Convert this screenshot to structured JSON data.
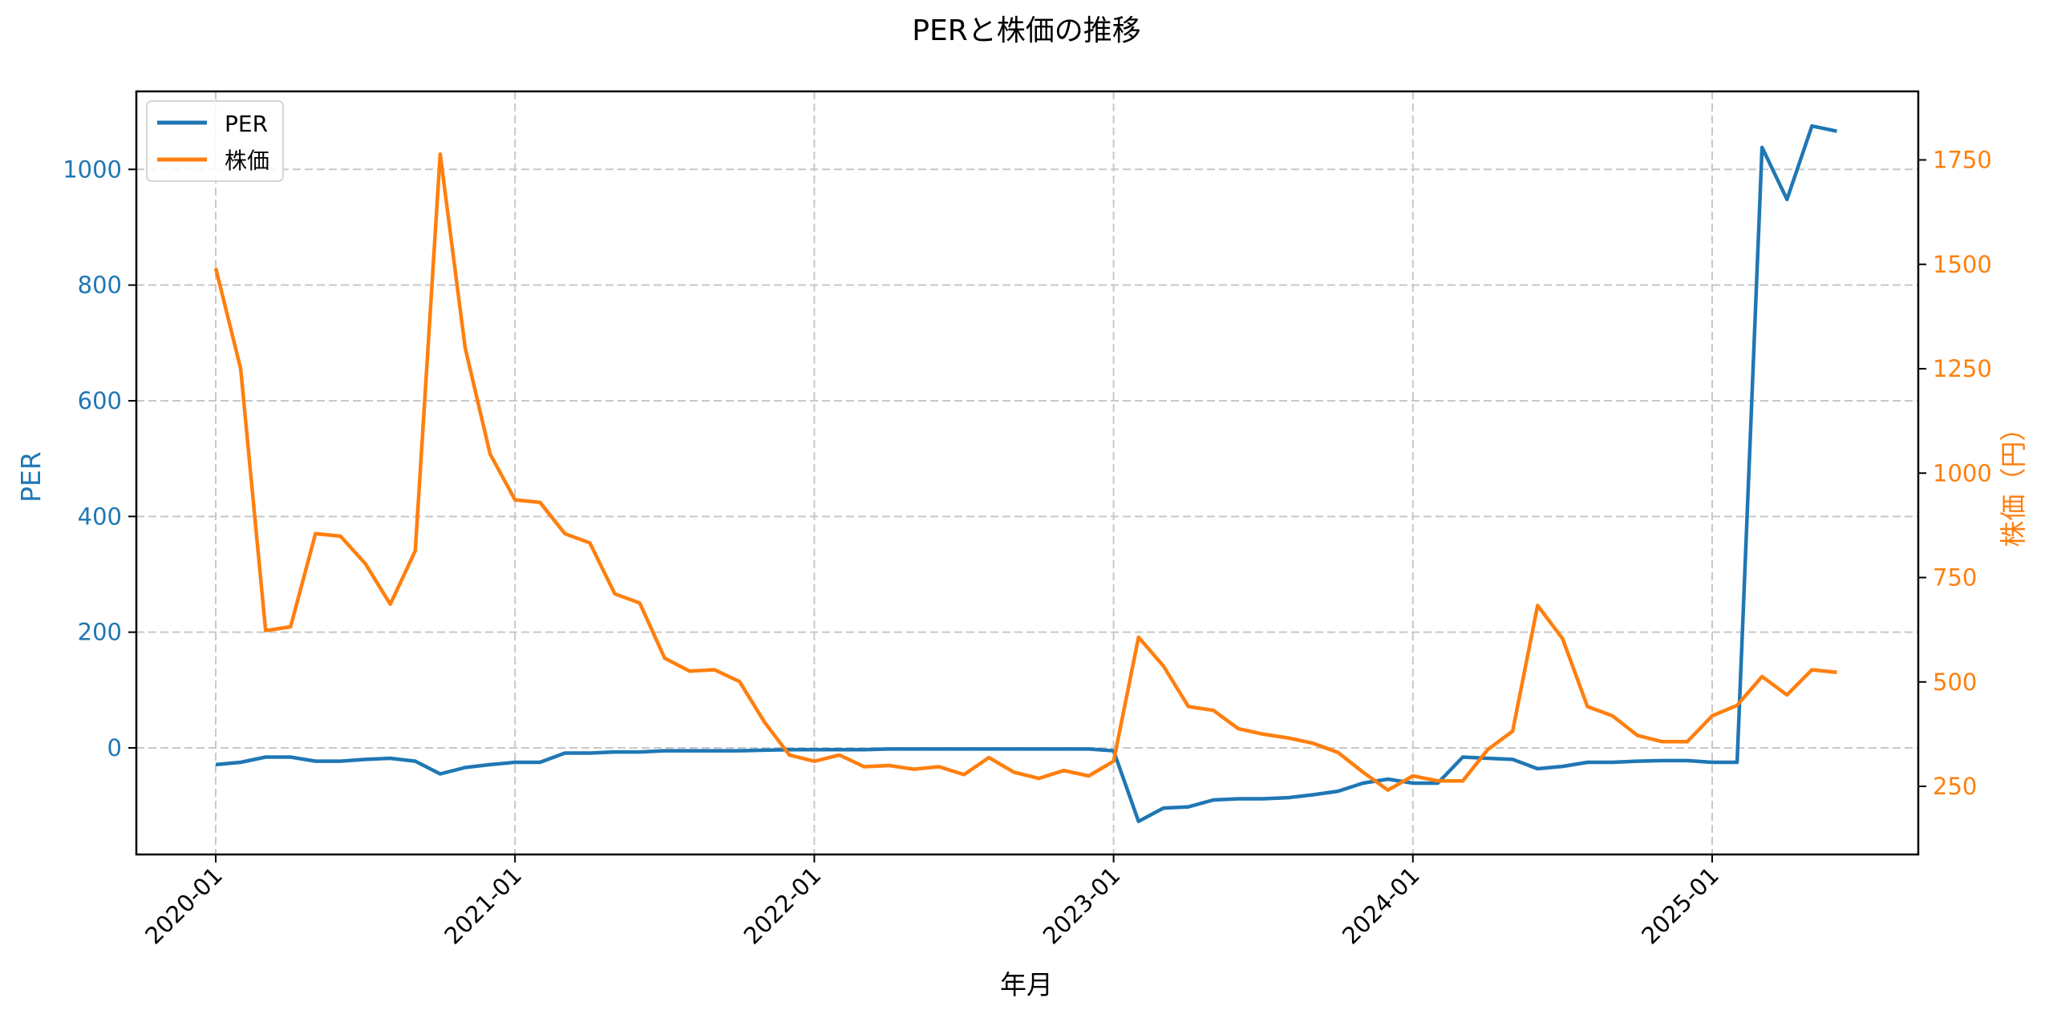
{
  "chart_data": {
    "type": "line",
    "title": "PERと株価の推移",
    "xlabel": "年月",
    "ylabel": "PER",
    "ylabel_right": "株価（円）",
    "x_ticks": [
      "2020-01",
      "2021-01",
      "2022-01",
      "2023-01",
      "2024-01",
      "2025-01"
    ],
    "y_ticks_left": [
      0,
      200,
      400,
      600,
      800,
      1000
    ],
    "y_ticks_right": [
      250,
      500,
      750,
      1000,
      1250,
      1500,
      1750
    ],
    "ylim_left": [
      -185,
      1140
    ],
    "ylim_right": [
      110,
      1910
    ],
    "grid": true,
    "legend_position": "upper left",
    "x": [
      "2020-01",
      "2020-02",
      "2020-03",
      "2020-04",
      "2020-05",
      "2020-06",
      "2020-07",
      "2020-08",
      "2020-09",
      "2020-10",
      "2020-11",
      "2020-12",
      "2021-01",
      "2021-02",
      "2021-03",
      "2021-04",
      "2021-05",
      "2021-06",
      "2021-07",
      "2021-08",
      "2021-09",
      "2021-10",
      "2021-11",
      "2021-12",
      "2022-01",
      "2022-02",
      "2022-03",
      "2022-04",
      "2022-05",
      "2022-06",
      "2022-07",
      "2022-08",
      "2022-09",
      "2022-10",
      "2022-11",
      "2022-12",
      "2023-01",
      "2023-02",
      "2023-03",
      "2023-04",
      "2023-05",
      "2023-06",
      "2023-07",
      "2023-08",
      "2023-09",
      "2023-10",
      "2023-11",
      "2023-12",
      "2024-01",
      "2024-02",
      "2024-03",
      "2024-04",
      "2024-05",
      "2024-06",
      "2024-07",
      "2024-08",
      "2024-09",
      "2024-10",
      "2024-11",
      "2024-12",
      "2025-01",
      "2025-02",
      "2025-03",
      "2025-04",
      "2025-05",
      "2025-06"
    ],
    "series": [
      {
        "name": "PER",
        "axis": "left",
        "color": "#1f77b4",
        "values": [
          -29,
          -25,
          -16,
          -16,
          -23,
          -23,
          -20,
          -18,
          -23,
          -45,
          -34,
          -29,
          -25,
          -25,
          -9,
          -9,
          -7,
          -7,
          -5,
          -5,
          -5,
          -5,
          -4,
          -3,
          -3,
          -3,
          -3,
          -2,
          -2,
          -2,
          -2,
          -2,
          -2,
          -2,
          -2,
          -2,
          -5,
          -127,
          -104,
          -102,
          -90,
          -88,
          -88,
          -86,
          -81,
          -75,
          -61,
          -54,
          -61,
          -61,
          -16,
          -18,
          -20,
          -36,
          -32,
          -25,
          -25,
          -23,
          -22,
          -22,
          -25,
          -25,
          1038,
          948,
          1075,
          1066
        ]
      },
      {
        "name": "株価",
        "axis": "right",
        "color": "#ff7f0e",
        "values": [
          1491,
          1250,
          623,
          632,
          855,
          849,
          783,
          686,
          814,
          1764,
          1300,
          1046,
          936,
          930,
          855,
          833,
          711,
          689,
          557,
          526,
          529,
          501,
          404,
          325,
          310,
          325,
          297,
          300,
          291,
          297,
          278,
          319,
          284,
          269,
          288,
          275,
          310,
          607,
          538,
          441,
          432,
          388,
          375,
          366,
          353,
          331,
          284,
          241,
          275,
          263,
          263,
          338,
          382,
          683,
          604,
          441,
          419,
          372,
          357,
          357,
          419,
          444,
          513,
          469,
          529,
          523
        ]
      }
    ]
  },
  "colors": {
    "per": "#1f77b4",
    "price": "#ff7f0e",
    "grid": "#c8c8c8",
    "frame": "#000000"
  }
}
